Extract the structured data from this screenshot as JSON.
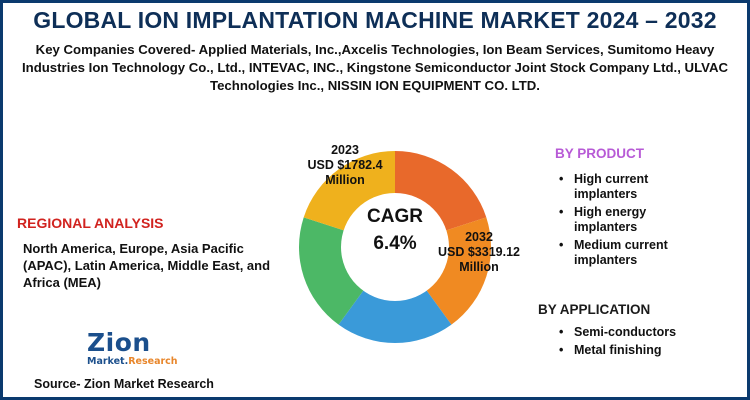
{
  "title": "GLOBAL ION IMPLANTATION MACHINE MARKET 2024 – 2032",
  "key_companies": "Key Companies Covered- Applied Materials, Inc.,Axcelis Technologies, Ion Beam Services, Sumitomo Heavy Industries Ion Technology Co., Ltd., INTEVAC, INC., Kingstone Semiconductor Joint Stock Company Ltd., ULVAC Technologies Inc., NISSIN ION EQUIPMENT CO. LTD.",
  "regional": {
    "heading": "REGIONAL ANALYSIS",
    "text": "North America, Europe, Asia Pacific (APAC), Latin America, Middle East, and Africa (MEA)"
  },
  "by_product": {
    "heading": "BY PRODUCT",
    "items": [
      "High current implanters",
      "High energy implanters",
      "Medium current implanters"
    ]
  },
  "by_application": {
    "heading": "BY APPLICATION",
    "items": [
      "Semi-conductors",
      "Metal finishing"
    ]
  },
  "logo": {
    "main": "Zion",
    "sub_a": "Market.",
    "sub_b": "Research"
  },
  "source": "Source- Zion Market Research",
  "colors": {
    "title": "#0e2f57",
    "regional_heading": "#d1231f",
    "product_heading": "#b75ad6",
    "border": "#0b3a6e"
  },
  "chart_data": {
    "type": "pie",
    "variant": "donut",
    "center_label": "CAGR",
    "center_value": "6.4%",
    "slices": [
      {
        "value": 20,
        "color": "#e8692b"
      },
      {
        "value": 20,
        "color": "#f08a22"
      },
      {
        "value": 20,
        "color": "#3a9ad9"
      },
      {
        "value": 20,
        "color": "#4cb866"
      },
      {
        "value": 20,
        "color": "#efb11d"
      }
    ],
    "annotations": {
      "year_2023": "2023",
      "value_2023": "USD $1782.4",
      "unit_2023": "Million",
      "year_2032": "2032",
      "value_2032": "USD $3319.12",
      "unit_2032": "Million"
    }
  }
}
